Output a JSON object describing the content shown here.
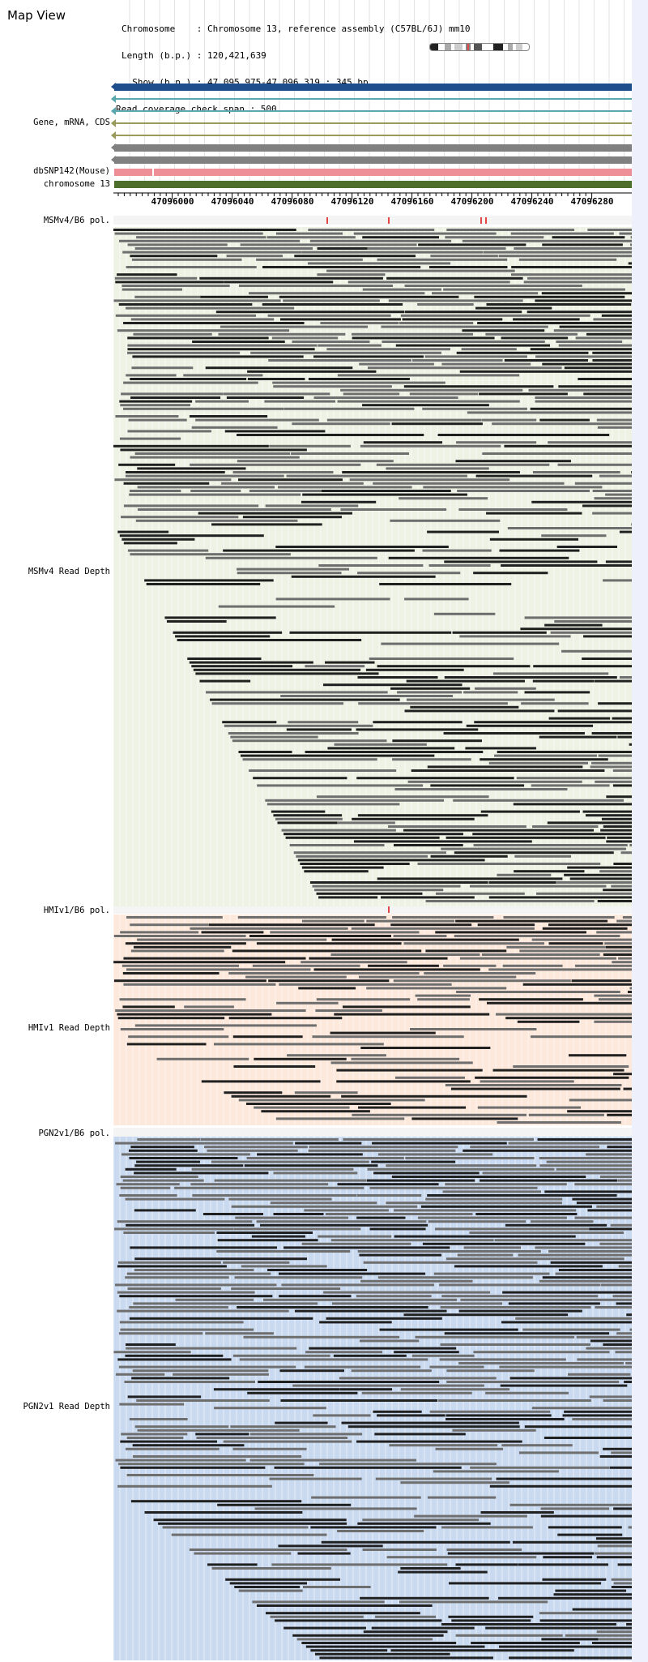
{
  "header": {
    "title": "Map View",
    "chromosome_line": "Chromosome    : Chromosome 13, reference assembly (C57BL/6J) mm10",
    "length_line": "Length (b.p.) : 120,421,639",
    "show_line": "  Show (b.p.) : 47,095,975-47,096,319 : 345 bp",
    "coverage_line": "Read coverage check span : 500"
  },
  "tracks": {
    "gene_label": "Gene, mRNA, CDS",
    "snp_label": "dbSNP142(Mouse)",
    "chromosome_label": "chromosome 13",
    "msmv4_pol_label": "MSMv4/B6 pol.",
    "msmv4_depth_label": "MSMv4 Read Depth",
    "hmiv1_pol_label": "HMIv1/B6 pol.",
    "hmiv1_depth_label": "HMIv1 Read Depth",
    "pgn2v1_pol_label": "PGN2v1/B6 pol.",
    "pgn2v1_depth_label": "PGN2v1 Read Depth"
  },
  "ruler": {
    "labels": [
      "47096000",
      "47096040",
      "47096080",
      "47096120",
      "47096160",
      "47096200",
      "47096240",
      "47096280"
    ]
  },
  "colors": {
    "gene_blue": "#1f4e8c",
    "teal": "#5aa7b0",
    "olive": "#9a9a5a",
    "gray_bar": "#808080",
    "snp_pink": "#ee8e96",
    "chrom_green": "#4e6e2c",
    "msm_bg": "#eef2e4",
    "hmi_bg": "#fde8dc",
    "pgn_bg": "#c9d9ef",
    "label_bg": "#eef0fb",
    "pol_red": "#e04848"
  }
}
